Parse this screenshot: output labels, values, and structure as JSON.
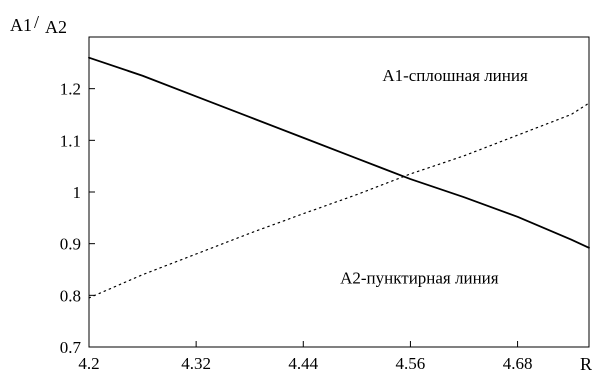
{
  "chart_data": {
    "type": "line",
    "ylabel_parts": {
      "numerator": "A1",
      "slash": "/",
      "denominator": "A2"
    },
    "xlabel": "R",
    "xlim": [
      4.2,
      4.76
    ],
    "ylim": [
      0.7,
      1.3
    ],
    "x_tick_labels": [
      "4.2",
      "4.32",
      "4.44",
      "4.56",
      "4.68"
    ],
    "x_tick_values": [
      4.2,
      4.32,
      4.44,
      4.56,
      4.68
    ],
    "y_tick_labels": [
      "0.7",
      "0.8",
      "0.9",
      "1",
      "1.1",
      "1.2"
    ],
    "y_tick_values": [
      0.7,
      0.8,
      0.9,
      1.0,
      1.1,
      1.2
    ],
    "grid": false,
    "series": [
      {
        "style": "solid",
        "x": [
          4.2,
          4.26,
          4.32,
          4.38,
          4.44,
          4.5,
          4.56,
          4.62,
          4.68,
          4.74,
          4.76
        ],
        "y": [
          1.26,
          1.225,
          1.185,
          1.145,
          1.105,
          1.065,
          1.025,
          0.99,
          0.952,
          0.908,
          0.892
        ]
      },
      {
        "style": "dotted",
        "x": [
          4.2,
          4.26,
          4.32,
          4.38,
          4.44,
          4.5,
          4.56,
          4.62,
          4.68,
          4.74,
          4.76
        ],
        "y": [
          0.795,
          0.84,
          0.88,
          0.92,
          0.958,
          0.995,
          1.035,
          1.07,
          1.11,
          1.15,
          1.172
        ]
      }
    ],
    "annotations": [
      {
        "text": "A1-сплошная линия",
        "x": 4.61,
        "y": 1.215
      },
      {
        "text": "A2-пунктирная линия",
        "x": 4.57,
        "y": 0.823
      }
    ]
  }
}
